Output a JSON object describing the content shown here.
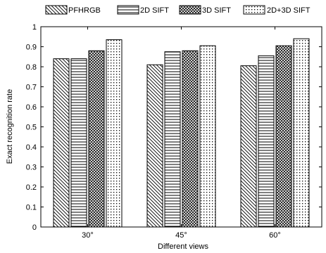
{
  "chart_data": {
    "type": "bar",
    "categories": [
      "30°",
      "45°",
      "60°"
    ],
    "series": [
      {
        "name": "PFHRGB",
        "values": [
          0.84,
          0.81,
          0.805
        ],
        "pattern": "diag-down"
      },
      {
        "name": "2D SIFT",
        "values": [
          0.84,
          0.875,
          0.855
        ],
        "pattern": "horizontal"
      },
      {
        "name": "3D SIFT",
        "values": [
          0.88,
          0.88,
          0.905
        ],
        "pattern": "crosshatch"
      },
      {
        "name": "2D+3D SIFT",
        "values": [
          0.935,
          0.905,
          0.94
        ],
        "pattern": "dots"
      }
    ],
    "title": "",
    "xlabel": "Different views",
    "ylabel": "Exact recognition rate",
    "ylim": [
      0,
      1
    ],
    "yticks": [
      "0",
      "0.1",
      "0.2",
      "0.3",
      "0.4",
      "0.5",
      "0.6",
      "0.7",
      "0.8",
      "0.9",
      "1"
    ],
    "grid": false,
    "legend_position": "top-outside"
  }
}
